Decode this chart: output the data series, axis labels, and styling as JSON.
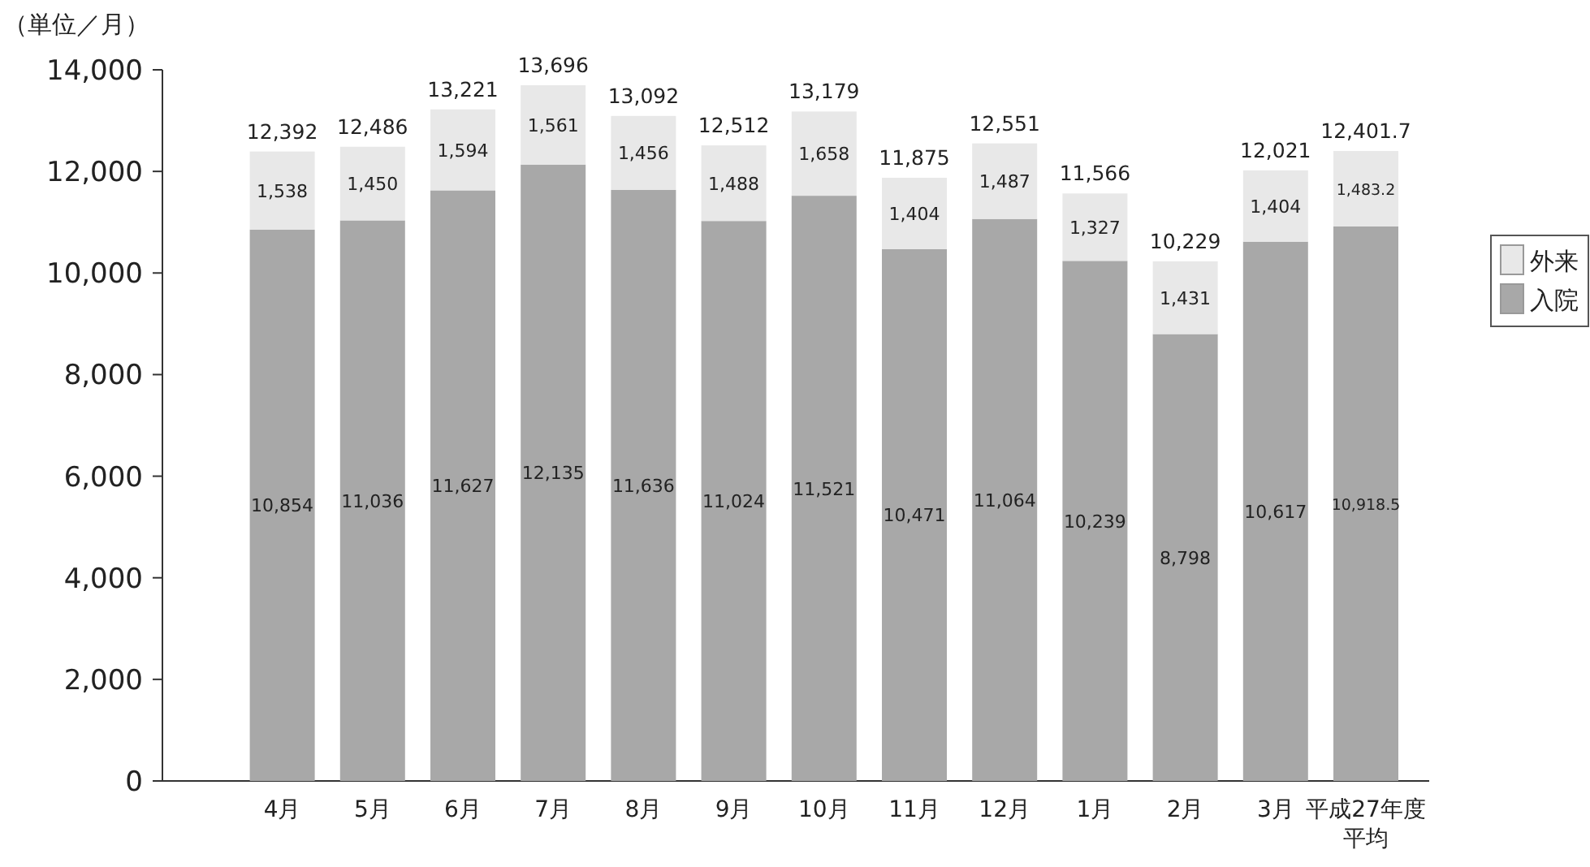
{
  "chart_data": {
    "type": "bar",
    "stacked": true,
    "ylabel": "（単位／月）",
    "categories": [
      "4月",
      "5月",
      "6月",
      "7月",
      "8月",
      "9月",
      "10月",
      "11月",
      "12月",
      "1月",
      "2月",
      "3月",
      "平成27年度平均"
    ],
    "series": [
      {
        "name": "入院",
        "color": "#a8a8a8",
        "values": [
          10854,
          11036,
          11627,
          12135,
          11636,
          11024,
          11521,
          10471,
          11064,
          10239,
          8798,
          10617,
          10918.5
        ],
        "value_labels": [
          "10,854",
          "11,036",
          "11,627",
          "12,135",
          "11,636",
          "11,024",
          "11,521",
          "10,471",
          "11,064",
          "10,239",
          "8,798",
          "10,617",
          "10,918.5"
        ]
      },
      {
        "name": "外来",
        "color": "#e8e8e8",
        "values": [
          1538,
          1450,
          1594,
          1561,
          1456,
          1488,
          1658,
          1404,
          1487,
          1327,
          1431,
          1404,
          1483.2
        ],
        "value_labels": [
          "1,538",
          "1,450",
          "1,594",
          "1,561",
          "1,456",
          "1,488",
          "1,658",
          "1,404",
          "1,487",
          "1,327",
          "1,431",
          "1,404",
          "1,483.2"
        ]
      }
    ],
    "totals": [
      "12,392",
      "12,486",
      "13,221",
      "13,696",
      "13,092",
      "12,512",
      "13,179",
      "11,875",
      "12,551",
      "11,566",
      "10,229",
      "12,021",
      "12,401.7"
    ],
    "ylim": [
      0,
      14000
    ],
    "yticks": [
      {
        "value": 0,
        "label": "0"
      },
      {
        "value": 2000,
        "label": "2,000"
      },
      {
        "value": 4000,
        "label": "4,000"
      },
      {
        "value": 6000,
        "label": "6,000"
      },
      {
        "value": 8000,
        "label": "8,000"
      },
      {
        "value": 10000,
        "label": "10,000"
      },
      {
        "value": 12000,
        "label": "12,000"
      },
      {
        "value": 14000,
        "label": "14,000"
      }
    ],
    "grid": false,
    "legend": "right"
  }
}
